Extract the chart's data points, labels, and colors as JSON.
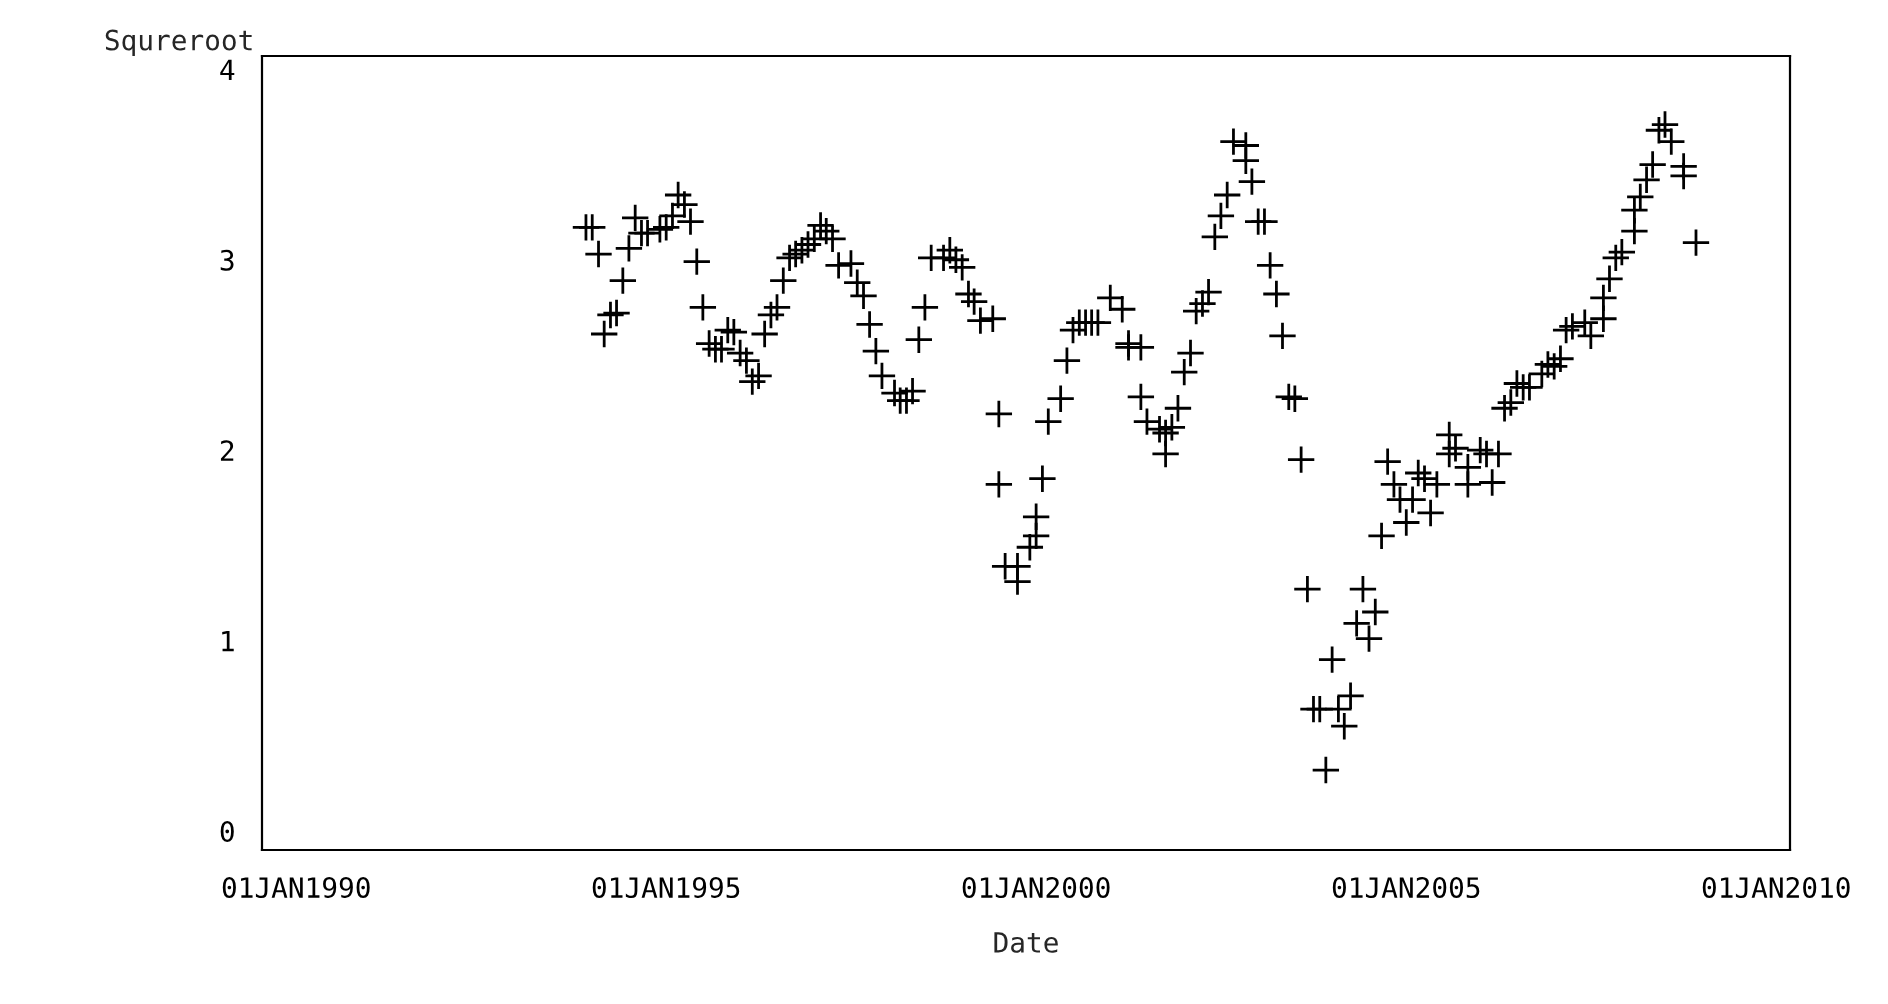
{
  "chart_data": {
    "type": "scatter",
    "xlabel": "Date",
    "ylabel": "Squreroot",
    "marker": "cross",
    "grid": false,
    "legend": false,
    "xlim": [
      "1989-07-16",
      "2010-03-10"
    ],
    "ylim": [
      -0.1,
      4.07
    ],
    "xticks": [
      {
        "value": "1990-01-01",
        "label": "01JAN1990"
      },
      {
        "value": "1995-01-01",
        "label": "01JAN1995"
      },
      {
        "value": "2000-01-01",
        "label": "01JAN2000"
      },
      {
        "value": "2005-01-01",
        "label": "01JAN2005"
      },
      {
        "value": "2010-01-01",
        "label": "01JAN2010"
      }
    ],
    "yticks": [
      0,
      1,
      2,
      3,
      4
    ],
    "series": [
      {
        "color": "#000000",
        "x": [
          "1993-12",
          "1994-01",
          "1994-02",
          "1994-03",
          "1994-04",
          "1994-05",
          "1994-06",
          "1994-07",
          "1994-08",
          "1994-09",
          "1994-10",
          "1994-12",
          "1995-01",
          "1995-02",
          "1995-03",
          "1995-04",
          "1995-05",
          "1995-06",
          "1995-07",
          "1995-08",
          "1995-09",
          "1995-10",
          "1995-11",
          "1995-12",
          "1996-01",
          "1996-02",
          "1996-03",
          "1996-04",
          "1996-05",
          "1996-06",
          "1996-07",
          "1996-08",
          "1996-09",
          "1996-10",
          "1996-11",
          "1996-12",
          "1997-01",
          "1997-02",
          "1997-03",
          "1997-04",
          "1997-05",
          "1997-07",
          "1997-08",
          "1997-09",
          "1997-10",
          "1997-11",
          "1997-12",
          "1998-02",
          "1998-03",
          "1998-04",
          "1998-05",
          "1998-06",
          "1998-07",
          "1998-08",
          "1998-10",
          "1998-11",
          "1998-12",
          "1999-01",
          "1999-02",
          "1999-03",
          "1999-04",
          "1999-06",
          "1999-07",
          "1999-07",
          "1999-08",
          "1999-10",
          "1999-10",
          "1999-12",
          "2000-01",
          "2000-01",
          "2000-02",
          "2000-03",
          "2000-05",
          "2000-06",
          "2000-07",
          "2000-08",
          "2000-09",
          "2000-10",
          "2000-11",
          "2001-01",
          "2001-03",
          "2001-04",
          "2001-04",
          "2001-06",
          "2001-06",
          "2001-07",
          "2001-09",
          "2001-10",
          "2001-10",
          "2001-11",
          "2001-12",
          "2002-01",
          "2002-02",
          "2002-03",
          "2002-04",
          "2002-05",
          "2002-06",
          "2002-07",
          "2002-08",
          "2002-09",
          "2002-11",
          "2002-11",
          "2002-12",
          "2003-01",
          "2003-02",
          "2003-03",
          "2003-04",
          "2003-05",
          "2003-06",
          "2003-07",
          "2003-08",
          "2003-09",
          "2003-10",
          "2003-11",
          "2003-12",
          "2004-01",
          "2004-02",
          "2004-03",
          "2004-04",
          "2004-06",
          "2004-05",
          "2004-07",
          "2004-08",
          "2004-09",
          "2004-10",
          "2004-11",
          "2004-12",
          "2005-01",
          "2005-02",
          "2005-03",
          "2005-04",
          "2005-05",
          "2005-06",
          "2005-08",
          "2005-08",
          "2005-09",
          "2005-11",
          "2005-11",
          "2006-01",
          "2006-02",
          "2006-03",
          "2006-04",
          "2006-05",
          "2006-06",
          "2006-07",
          "2006-08",
          "2006-09",
          "2006-11",
          "2006-12",
          "2007-01",
          "2007-02",
          "2007-03",
          "2007-04",
          "2007-06",
          "2007-07",
          "2007-09",
          "2007-09",
          "2007-10",
          "2007-11",
          "2007-12",
          "2008-02",
          "2008-02",
          "2008-03",
          "2008-04",
          "2008-05",
          "2008-06",
          "2008-07",
          "2008-08",
          "2008-10",
          "2008-10",
          "2008-12"
        ],
        "values": [
          3.17,
          3.17,
          3.03,
          2.61,
          2.71,
          2.72,
          2.89,
          3.06,
          3.22,
          3.14,
          3.14,
          3.16,
          3.17,
          3.23,
          3.34,
          3.29,
          3.2,
          2.99,
          2.75,
          2.56,
          2.53,
          2.53,
          2.63,
          2.62,
          2.51,
          2.47,
          2.36,
          2.39,
          2.61,
          2.71,
          2.75,
          2.89,
          3.01,
          3.03,
          3.05,
          3.08,
          3.11,
          3.18,
          3.15,
          3.11,
          2.97,
          2.98,
          2.88,
          2.81,
          2.66,
          2.52,
          2.39,
          2.3,
          2.26,
          2.26,
          2.31,
          2.58,
          2.75,
          3.01,
          3.01,
          3.05,
          3.0,
          2.96,
          2.82,
          2.78,
          2.68,
          2.69,
          2.19,
          1.82,
          1.39,
          1.31,
          1.39,
          1.49,
          1.65,
          1.55,
          1.85,
          2.15,
          2.27,
          2.47,
          2.63,
          2.67,
          2.67,
          2.67,
          2.67,
          2.8,
          2.74,
          2.56,
          2.54,
          2.54,
          2.28,
          2.15,
          2.11,
          2.09,
          1.98,
          2.12,
          2.22,
          2.41,
          2.51,
          2.73,
          2.77,
          2.83,
          3.12,
          3.23,
          3.34,
          3.62,
          3.6,
          3.52,
          3.41,
          3.2,
          3.2,
          2.97,
          2.82,
          2.6,
          2.28,
          2.27,
          1.95,
          1.27,
          0.64,
          0.64,
          0.32,
          0.9,
          0.64,
          0.55,
          0.71,
          1.27,
          1.09,
          1.01,
          1.15,
          1.55,
          1.94,
          1.82,
          1.74,
          1.62,
          1.74,
          1.88,
          1.85,
          1.67,
          1.82,
          1.98,
          2.08,
          2.01,
          1.82,
          1.91,
          2.0,
          1.98,
          1.83,
          1.98,
          2.22,
          2.25,
          2.35,
          2.33,
          2.33,
          2.4,
          2.45,
          2.44,
          2.48,
          2.63,
          2.65,
          2.67,
          2.6,
          2.69,
          2.8,
          2.9,
          3.01,
          3.04,
          3.15,
          3.26,
          3.33,
          3.42,
          3.5,
          3.68,
          3.71,
          3.62,
          3.49,
          3.44,
          3.09
        ]
      }
    ]
  }
}
